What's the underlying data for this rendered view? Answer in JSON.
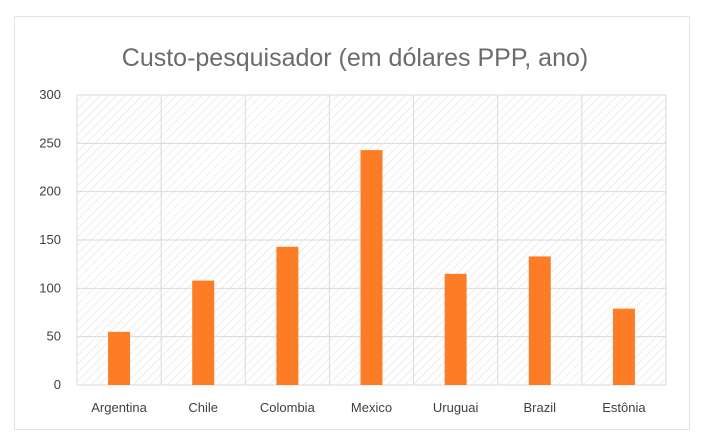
{
  "chart_data": {
    "type": "bar",
    "title": "Custo-pesquisador (em dólares PPP, ano)",
    "xlabel": "",
    "ylabel": "",
    "categories": [
      "Argentina",
      "Chile",
      "Colombia",
      "Mexico",
      "Uruguai",
      "Brazil",
      "Estônia"
    ],
    "values": [
      55,
      108,
      143,
      243,
      115,
      133,
      79
    ],
    "ylim": [
      0,
      300
    ],
    "yticks": [
      0,
      50,
      100,
      150,
      200,
      250,
      300
    ],
    "grid": true,
    "legend": "none",
    "bar_color": "#fd7d27",
    "grid_color": "#d9d9d9",
    "plot_hatch_color": "#e2e2e2"
  }
}
